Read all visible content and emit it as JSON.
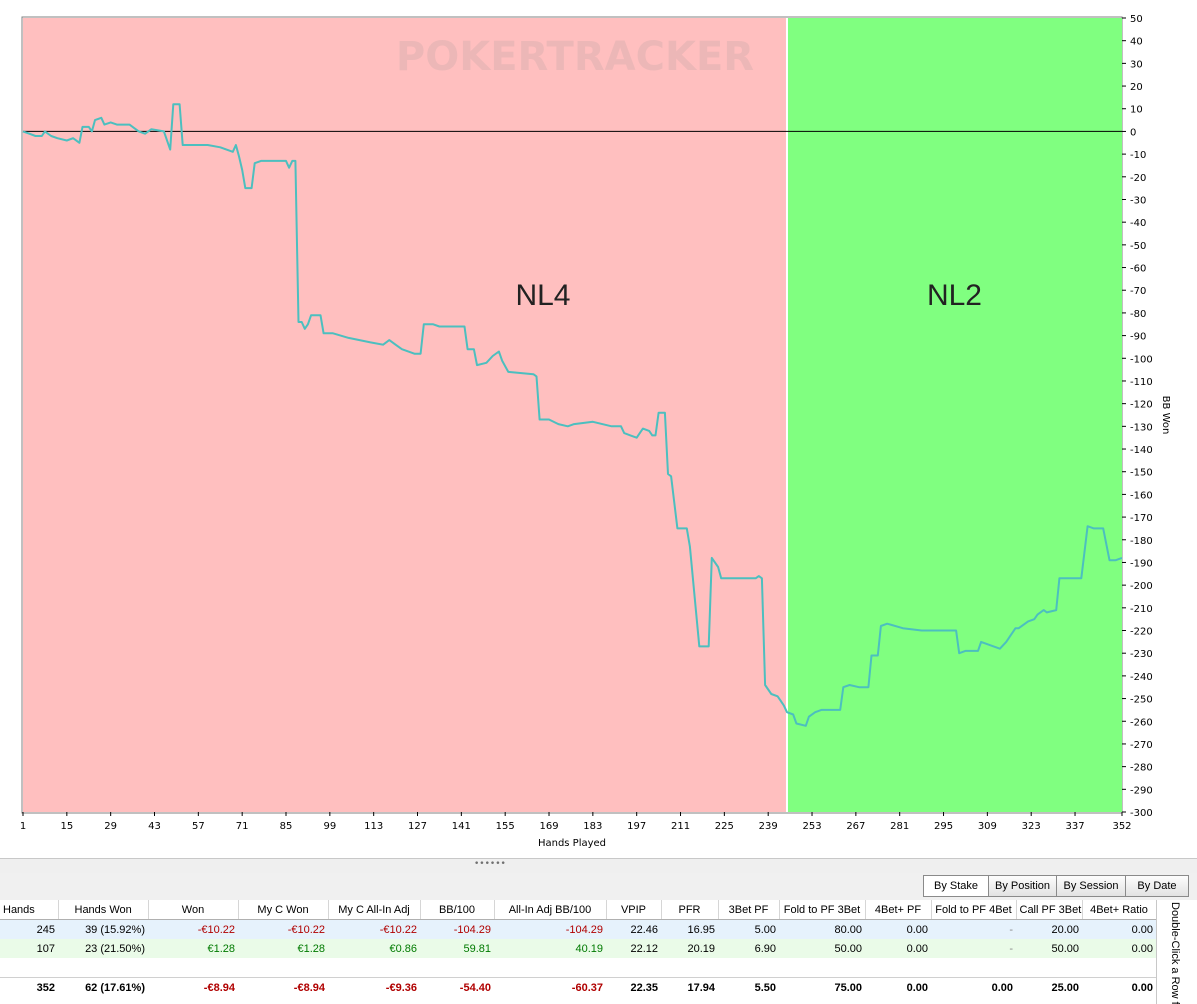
{
  "graph": {
    "watermark": "POKERTRACKER",
    "y_axis_label": "BB Won",
    "x_axis_label": "Hands Played",
    "regions": [
      {
        "label": "NL4",
        "from_hand": 1,
        "to_hand": 245,
        "color": "#ffbfbf"
      },
      {
        "label": "NL2",
        "from_hand": 245,
        "to_hand": 352,
        "color": "#80ff80"
      }
    ]
  },
  "chart_data": {
    "type": "line",
    "xlabel": "Hands Played",
    "ylabel": "BB Won",
    "xlim": [
      1,
      352
    ],
    "ylim": [
      -300,
      50
    ],
    "x_ticks": [
      1,
      15,
      29,
      43,
      57,
      71,
      85,
      99,
      113,
      127,
      141,
      155,
      169,
      183,
      197,
      211,
      225,
      239,
      253,
      267,
      281,
      295,
      309,
      323,
      337,
      352
    ],
    "y_ticks": [
      50,
      40,
      30,
      20,
      10,
      0,
      -10,
      -20,
      -30,
      -40,
      -50,
      -60,
      -70,
      -80,
      -90,
      -100,
      -110,
      -120,
      -130,
      -140,
      -150,
      -160,
      -170,
      -180,
      -190,
      -200,
      -210,
      -220,
      -230,
      -240,
      -250,
      -260,
      -270,
      -280,
      -290,
      -300
    ],
    "series": [
      {
        "color": "#4cbfbf",
        "points": [
          [
            1,
            0
          ],
          [
            3,
            -1
          ],
          [
            5,
            -2
          ],
          [
            7,
            -2
          ],
          [
            8,
            0
          ],
          [
            10,
            -2
          ],
          [
            12,
            -3
          ],
          [
            15,
            -4
          ],
          [
            17,
            -3
          ],
          [
            19,
            -5
          ],
          [
            20,
            2
          ],
          [
            22,
            2
          ],
          [
            23,
            0
          ],
          [
            24,
            5
          ],
          [
            26,
            6
          ],
          [
            27,
            3
          ],
          [
            29,
            4
          ],
          [
            31,
            3
          ],
          [
            35,
            3
          ],
          [
            37,
            1
          ],
          [
            38,
            0
          ],
          [
            40,
            -1
          ],
          [
            42,
            1
          ],
          [
            46,
            0
          ],
          [
            48,
            -8
          ],
          [
            49,
            12
          ],
          [
            51,
            12
          ],
          [
            52,
            -6
          ],
          [
            60,
            -6
          ],
          [
            64,
            -7
          ],
          [
            66,
            -8
          ],
          [
            68,
            -9
          ],
          [
            69,
            -6
          ],
          [
            70,
            -11
          ],
          [
            71,
            -17
          ],
          [
            72,
            -25
          ],
          [
            74,
            -25
          ],
          [
            75,
            -14
          ],
          [
            77,
            -13
          ],
          [
            85,
            -13
          ],
          [
            86,
            -16
          ],
          [
            87,
            -13
          ],
          [
            88,
            -13
          ],
          [
            89,
            -84
          ],
          [
            90,
            -84
          ],
          [
            91,
            -87
          ],
          [
            92,
            -85
          ],
          [
            93,
            -81
          ],
          [
            96,
            -81
          ],
          [
            97,
            -89
          ],
          [
            100,
            -89
          ],
          [
            105,
            -91
          ],
          [
            112,
            -93
          ],
          [
            116,
            -94
          ],
          [
            118,
            -92
          ],
          [
            120,
            -94
          ],
          [
            122,
            -96
          ],
          [
            126,
            -98
          ],
          [
            128,
            -98
          ],
          [
            129,
            -85
          ],
          [
            132,
            -85
          ],
          [
            134,
            -86
          ],
          [
            142,
            -86
          ],
          [
            143,
            -96
          ],
          [
            145,
            -96
          ],
          [
            146,
            -103
          ],
          [
            149,
            -102
          ],
          [
            151,
            -99
          ],
          [
            153,
            -97
          ],
          [
            154,
            -101
          ],
          [
            156,
            -106
          ],
          [
            164,
            -107
          ],
          [
            165,
            -108
          ],
          [
            166,
            -127
          ],
          [
            169,
            -127
          ],
          [
            172,
            -129
          ],
          [
            175,
            -130
          ],
          [
            177,
            -129
          ],
          [
            183,
            -128
          ],
          [
            189,
            -130
          ],
          [
            192,
            -130
          ],
          [
            193,
            -133
          ],
          [
            195,
            -134
          ],
          [
            197,
            -135
          ],
          [
            198,
            -133
          ],
          [
            199,
            -131
          ],
          [
            201,
            -132
          ],
          [
            202,
            -134
          ],
          [
            203,
            -134
          ],
          [
            204,
            -124
          ],
          [
            206,
            -124
          ],
          [
            207,
            -151
          ],
          [
            208,
            -152
          ],
          [
            210,
            -175
          ],
          [
            213,
            -175
          ],
          [
            214,
            -183
          ],
          [
            217,
            -227
          ],
          [
            220,
            -227
          ],
          [
            221,
            -188
          ],
          [
            223,
            -192
          ],
          [
            224,
            -197
          ],
          [
            235,
            -197
          ],
          [
            236,
            -196
          ],
          [
            237,
            -197
          ],
          [
            238,
            -244
          ],
          [
            240,
            -248
          ],
          [
            242,
            -249
          ],
          [
            243,
            -251
          ],
          [
            244,
            -253
          ],
          [
            245,
            -256
          ],
          [
            247,
            -257
          ],
          [
            248,
            -261
          ],
          [
            251,
            -262
          ],
          [
            252,
            -258
          ],
          [
            254,
            -256
          ],
          [
            256,
            -255
          ],
          [
            262,
            -255
          ],
          [
            263,
            -245
          ],
          [
            265,
            -244
          ],
          [
            268,
            -245
          ],
          [
            271,
            -245
          ],
          [
            272,
            -231
          ],
          [
            274,
            -231
          ],
          [
            275,
            -218
          ],
          [
            277,
            -217
          ],
          [
            282,
            -219
          ],
          [
            288,
            -220
          ],
          [
            299,
            -220
          ],
          [
            300,
            -230
          ],
          [
            302,
            -229
          ],
          [
            306,
            -229
          ],
          [
            307,
            -225
          ],
          [
            313,
            -228
          ],
          [
            315,
            -225
          ],
          [
            316,
            -223
          ],
          [
            318,
            -219
          ],
          [
            319,
            -219
          ],
          [
            322,
            -216
          ],
          [
            324,
            -215
          ],
          [
            325,
            -213
          ],
          [
            327,
            -211
          ],
          [
            328,
            -212
          ],
          [
            331,
            -211
          ],
          [
            332,
            -197
          ],
          [
            339,
            -197
          ],
          [
            341,
            -174
          ],
          [
            343,
            -175
          ],
          [
            346,
            -175
          ],
          [
            348,
            -189
          ],
          [
            350,
            -189
          ],
          [
            352,
            -188
          ]
        ]
      }
    ]
  },
  "tabs": [
    {
      "label": "By Stake",
      "active": true
    },
    {
      "label": "By Position",
      "active": false
    },
    {
      "label": "By Session",
      "active": false
    },
    {
      "label": "By Date",
      "active": false
    }
  ],
  "table": {
    "columns": [
      "Hands",
      "Hands Won",
      "Won",
      "My C Won",
      "My C All-In Adj",
      "BB/100",
      "All-In Adj BB/100",
      "VPIP",
      "PFR",
      "3Bet PF",
      "Fold to PF 3Bet",
      "4Bet+ PF",
      "Fold to PF 4Bet",
      "Call PF 3Bet",
      "4Bet+ Ratio"
    ],
    "rows": [
      [
        "245",
        "39 (15.92%)",
        "-€10.22",
        "-€10.22",
        "-€10.22",
        "-104.29",
        "-104.29",
        "22.46",
        "16.95",
        "5.00",
        "80.00",
        "0.00",
        "-",
        "20.00",
        "0.00"
      ],
      [
        "107",
        "23 (21.50%)",
        "€1.28",
        "€1.28",
        "€0.86",
        "59.81",
        "40.19",
        "22.12",
        "20.19",
        "6.90",
        "50.00",
        "0.00",
        "-",
        "50.00",
        "0.00"
      ]
    ],
    "total": [
      "352",
      "62 (17.61%)",
      "-€8.94",
      "-€8.94",
      "-€9.36",
      "-54.40",
      "-60.37",
      "22.35",
      "17.94",
      "5.50",
      "75.00",
      "0.00",
      "0.00",
      "25.00",
      "0.00"
    ]
  },
  "side_hint": "Double-Click a Row for De"
}
